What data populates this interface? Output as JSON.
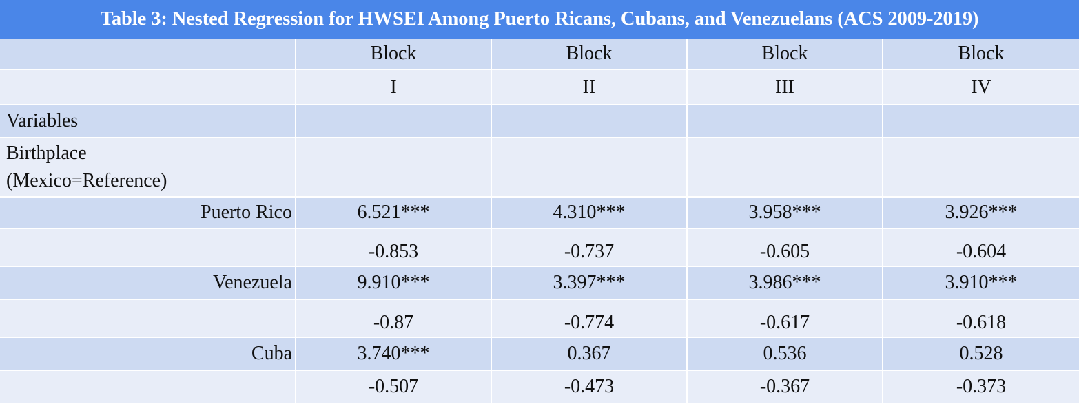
{
  "title": "Table 3: Nested Regression for HWSEI Among Puerto Ricans, Cubans, and Venezuelans (ACS 2009-2019)",
  "header": {
    "row1": [
      "",
      "Block",
      "Block",
      "Block",
      "Block"
    ],
    "row2": [
      "",
      "I",
      "II",
      "III",
      "IV"
    ]
  },
  "rows": [
    {
      "label": "Variables",
      "values": [
        "",
        "",
        "",
        ""
      ]
    },
    {
      "label_line1": "Birthplace",
      "label_line2": "(Mexico=Reference)",
      "values": [
        "",
        "",
        "",
        ""
      ]
    },
    {
      "label": "Puerto Rico",
      "values": [
        "6.521***",
        "4.310***",
        "3.958***",
        "3.926***"
      ]
    },
    {
      "label": "",
      "values": [
        "-0.853",
        "-0.737",
        "-0.605",
        "-0.604"
      ]
    },
    {
      "label": "Venezuela",
      "values": [
        "9.910***",
        "3.397***",
        "3.986***",
        "3.910***"
      ]
    },
    {
      "label": "",
      "values": [
        "-0.87",
        "-0.774",
        "-0.617",
        "-0.618"
      ]
    },
    {
      "label": "Cuba",
      "values": [
        "3.740***",
        "0.367",
        "0.536",
        "0.528"
      ]
    },
    {
      "label": "",
      "values": [
        "-0.507",
        "-0.473",
        "-0.367",
        "-0.373"
      ]
    }
  ],
  "colors": {
    "title_bg": "#4a86e8",
    "row_dark": "#cddaf2",
    "row_light": "#e8edf8"
  }
}
